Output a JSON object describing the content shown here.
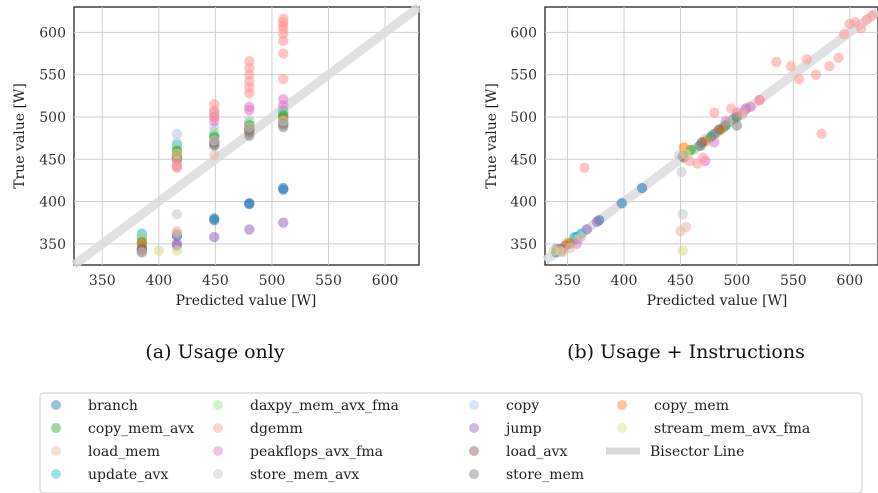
{
  "captions": [
    "(a) Usage only",
    "(b) Usage + Instructions"
  ],
  "legend": {
    "items": [
      {
        "name": "branch",
        "color": "#1f77b4"
      },
      {
        "name": "daxpy_mem_avx_fma",
        "color": "#98df8a"
      },
      {
        "name": "copy",
        "color": "#aec7e8"
      },
      {
        "name": "copy_mem",
        "color": "#ff7f0e"
      },
      {
        "name": "copy_mem_avx",
        "color": "#2ca02c"
      },
      {
        "name": "dgemm",
        "color": "#ff9896"
      },
      {
        "name": "jump",
        "color": "#9467bd"
      },
      {
        "name": "stream_mem_avx_fma",
        "color": "#dbdb8d"
      },
      {
        "name": "load_mem",
        "color": "#e8b4a8"
      },
      {
        "name": "peakflops_avx_fma",
        "color": "#e377c2"
      },
      {
        "name": "load_avx",
        "color": "#8c564b"
      },
      {
        "name": "Bisector Line",
        "color": "#d9d9d9",
        "line": true
      },
      {
        "name": "update_avx",
        "color": "#17becf"
      },
      {
        "name": "store_mem_avx",
        "color": "#c7c7c7"
      },
      {
        "name": "store_mem",
        "color": "#7f7f7f"
      }
    ]
  },
  "chart_data": [
    {
      "type": "scatter",
      "title": "",
      "xlabel": "Predicted value [W]",
      "ylabel": "True value [W]",
      "xlim": [
        325,
        630
      ],
      "ylim": [
        325,
        630
      ],
      "xticks": [
        350,
        400,
        450,
        500,
        550,
        600
      ],
      "yticks": [
        350,
        400,
        450,
        500,
        550,
        600
      ],
      "grid": true,
      "bisector": true,
      "series": [
        {
          "name": "branch",
          "color": "#1f77b4",
          "x": [
            385,
            385,
            416,
            416,
            449,
            449,
            480,
            480,
            510,
            510
          ],
          "y": [
            340,
            343,
            359,
            361,
            378,
            380,
            397,
            398,
            414,
            416
          ]
        },
        {
          "name": "jump",
          "color": "#9467bd",
          "x": [
            385,
            416,
            416,
            449,
            480,
            510
          ],
          "y": [
            348,
            348,
            350,
            358,
            367,
            375
          ]
        },
        {
          "name": "update_avx",
          "color": "#17becf",
          "x": [
            385,
            385,
            416,
            449,
            480,
            510
          ],
          "y": [
            356,
            362,
            467,
            478,
            488,
            507
          ]
        },
        {
          "name": "copy",
          "color": "#aec7e8",
          "x": [
            385,
            416,
            416,
            449,
            480,
            510
          ],
          "y": [
            360,
            470,
            480,
            488,
            496,
            505
          ]
        },
        {
          "name": "daxpy_mem_avx_fma",
          "color": "#98df8a",
          "x": [
            385,
            416,
            449,
            480,
            510
          ],
          "y": [
            358,
            465,
            482,
            493,
            503
          ]
        },
        {
          "name": "copy_mem_avx",
          "color": "#2ca02c",
          "x": [
            385,
            416,
            449,
            480,
            510,
            510
          ],
          "y": [
            352,
            460,
            476,
            490,
            499,
            502
          ]
        },
        {
          "name": "copy_mem",
          "color": "#ff7f0e",
          "x": [
            385,
            416,
            449,
            480,
            510
          ],
          "y": [
            351,
            455,
            471,
            485,
            497
          ]
        },
        {
          "name": "load_avx",
          "color": "#8c564b",
          "x": [
            385,
            416,
            416,
            449,
            480,
            510
          ],
          "y": [
            344,
            450,
            455,
            470,
            485,
            493
          ]
        },
        {
          "name": "store_mem",
          "color": "#7f7f7f",
          "x": [
            385,
            416,
            449,
            449,
            480,
            480,
            510,
            510
          ],
          "y": [
            342,
            452,
            466,
            468,
            478,
            482,
            488,
            491
          ]
        },
        {
          "name": "store_mem_avx",
          "color": "#c7c7c7",
          "x": [
            416,
            416,
            449,
            480,
            510
          ],
          "y": [
            385,
            440,
            472,
            488,
            495
          ]
        },
        {
          "name": "peakflops_avx_fma",
          "color": "#e377c2",
          "x": [
            416,
            449,
            449,
            449,
            480,
            480,
            510,
            510
          ],
          "y": [
            443,
            495,
            500,
            505,
            508,
            512,
            514,
            521
          ]
        },
        {
          "name": "dgemm",
          "color": "#ff9896",
          "x": [
            416,
            416,
            449,
            449,
            449,
            480,
            480,
            480,
            480,
            480,
            480,
            510,
            510,
            510,
            510,
            510,
            510,
            510,
            510
          ],
          "y": [
            440,
            448,
            500,
            508,
            515,
            528,
            535,
            542,
            550,
            558,
            566,
            545,
            575,
            590,
            598,
            604,
            608,
            612,
            616
          ]
        },
        {
          "name": "load_mem",
          "color": "#e8b4a8",
          "x": [
            385,
            416,
            416,
            449
          ],
          "y": [
            340,
            362,
            365,
            455
          ]
        },
        {
          "name": "stream_mem_avx_fma",
          "color": "#dbdb8d",
          "x": [
            400,
            416,
            416
          ],
          "y": [
            342,
            342,
            456
          ]
        }
      ]
    },
    {
      "type": "scatter",
      "title": "",
      "xlabel": "Predicted value [W]",
      "ylabel": "True value [W]",
      "xlim": [
        330,
        625
      ],
      "ylim": [
        325,
        630
      ],
      "xticks": [
        350,
        400,
        450,
        500,
        550,
        600
      ],
      "yticks": [
        350,
        400,
        450,
        500,
        550,
        600
      ],
      "grid": true,
      "bisector": true,
      "series": [
        {
          "name": "branch",
          "color": "#1f77b4",
          "x": [
            340,
            358,
            378,
            398,
            416
          ],
          "y": [
            340,
            358,
            378,
            398,
            416
          ]
        },
        {
          "name": "jump",
          "color": "#9467bd",
          "x": [
            340,
            348,
            358,
            367,
            376,
            497,
            508
          ],
          "y": [
            344,
            348,
            356,
            367,
            376,
            498,
            510
          ]
        },
        {
          "name": "update_avx",
          "color": "#17becf",
          "x": [
            356,
            362,
            468,
            478,
            488
          ],
          "y": [
            358,
            362,
            466,
            478,
            488
          ]
        },
        {
          "name": "copy",
          "color": "#aec7e8",
          "x": [
            360,
            472,
            481,
            489,
            505
          ],
          "y": [
            356,
            474,
            480,
            488,
            503
          ]
        },
        {
          "name": "daxpy_mem_avx_fma",
          "color": "#98df8a",
          "x": [
            357,
            463,
            483,
            493
          ],
          "y": [
            355,
            462,
            482,
            494
          ]
        },
        {
          "name": "copy_mem_avx",
          "color": "#2ca02c",
          "x": [
            352,
            459,
            477,
            490,
            500
          ],
          "y": [
            350,
            461,
            476,
            490,
            500
          ]
        },
        {
          "name": "copy_mem",
          "color": "#ff7f0e",
          "x": [
            350,
            453,
            472,
            486
          ],
          "y": [
            351,
            464,
            471,
            485
          ]
        },
        {
          "name": "load_avx",
          "color": "#8c564b",
          "x": [
            344,
            452,
            469,
            484
          ],
          "y": [
            344,
            454,
            470,
            485
          ]
        },
        {
          "name": "store_mem",
          "color": "#7f7f7f",
          "x": [
            345,
            453,
            467,
            480,
            500
          ],
          "y": [
            342,
            452,
            466,
            480,
            490
          ]
        },
        {
          "name": "store_mem_avx",
          "color": "#c7c7c7",
          "x": [
            451,
            452,
            449
          ],
          "y": [
            435,
            385,
            455
          ]
        },
        {
          "name": "peakflops_avx_fma",
          "color": "#e377c2",
          "x": [
            358,
            472,
            480,
            490,
            500,
            512,
            520
          ],
          "y": [
            350,
            448,
            470,
            495,
            505,
            512,
            520
          ]
        },
        {
          "name": "dgemm",
          "color": "#ff9896",
          "x": [
            365,
            458,
            465,
            470,
            480,
            495,
            505,
            520,
            535,
            548,
            555,
            562,
            570,
            575,
            582,
            590,
            595,
            600,
            605,
            610,
            615,
            620
          ],
          "y": [
            440,
            448,
            445,
            452,
            505,
            510,
            505,
            520,
            565,
            560,
            545,
            568,
            550,
            480,
            560,
            570,
            598,
            610,
            612,
            605,
            615,
            620
          ]
        },
        {
          "name": "load_mem",
          "color": "#e8b4a8",
          "x": [
            345,
            352,
            362,
            450,
            455
          ],
          "y": [
            340,
            345,
            358,
            365,
            370
          ]
        },
        {
          "name": "stream_mem_avx_fma",
          "color": "#dbdb8d",
          "x": [
            338,
            343,
            452,
            455
          ],
          "y": [
            342,
            342,
            342,
            456
          ]
        }
      ]
    }
  ]
}
